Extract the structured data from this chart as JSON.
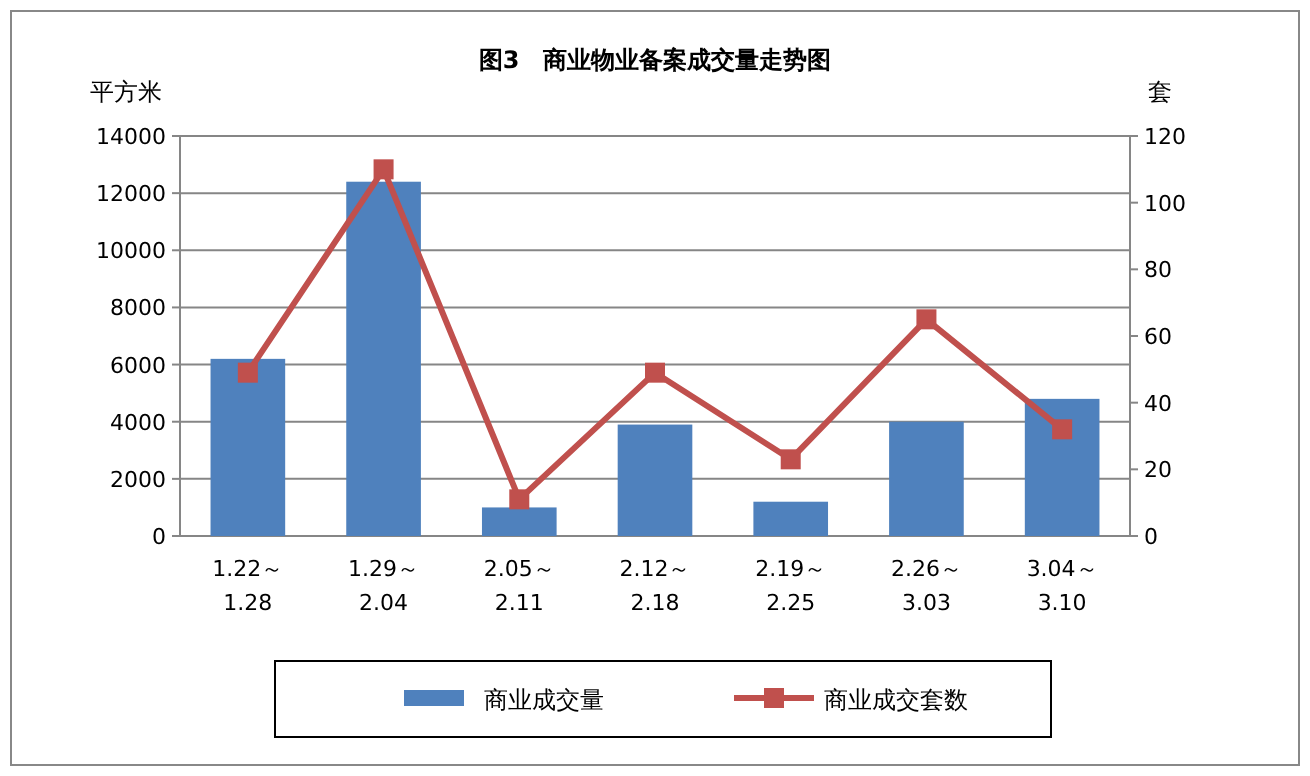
{
  "chart_data": {
    "type": "bar",
    "title": "图3　商业物业备案成交量走势图",
    "ylabel": "平方米",
    "y2label": "套",
    "categories": [
      "1.22～\n1.28",
      "1.29～\n2.04",
      "2.05～\n2.11",
      "2.12～\n2.18",
      "2.19～\n2.25",
      "2.26～\n3.03",
      "3.04～\n3.10"
    ],
    "series": [
      {
        "name": "商业成交量",
        "color": "#4f81bd",
        "values": [
          6200,
          12400,
          1000,
          3900,
          1200,
          4000,
          4800
        ]
      },
      {
        "name": "商业成交套数",
        "type": "line",
        "axis": "y2",
        "color": "#c0504d",
        "marker": "square",
        "values": [
          49,
          110,
          11,
          49,
          23,
          65,
          32
        ]
      }
    ],
    "ylim": [
      0,
      14000
    ],
    "yticks": [
      0,
      2000,
      4000,
      6000,
      8000,
      10000,
      12000,
      14000
    ],
    "y2lim": [
      0,
      120
    ],
    "y2ticks": [
      0,
      20,
      40,
      60,
      80,
      100,
      120
    ],
    "grid": "y",
    "legend": "bottom"
  }
}
